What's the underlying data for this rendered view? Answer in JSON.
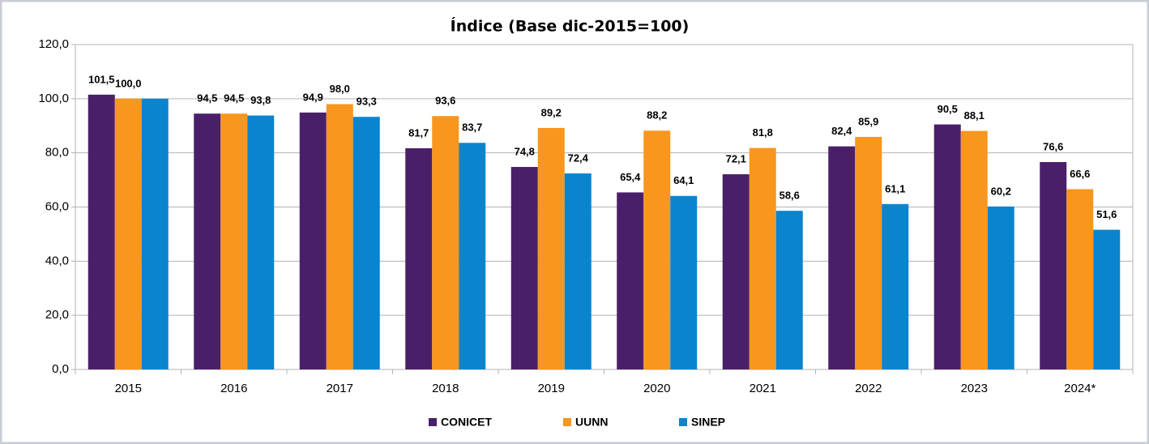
{
  "chart_data": {
    "type": "bar",
    "title": "Índice (Base dic-2015=100)",
    "categories": [
      "2015",
      "2016",
      "2017",
      "2018",
      "2019",
      "2020",
      "2021",
      "2022",
      "2023",
      "2024*"
    ],
    "series": [
      {
        "name": "CONICET",
        "color": "#4a1f6a",
        "values": [
          101.5,
          94.5,
          94.9,
          81.7,
          74.8,
          65.4,
          72.1,
          82.4,
          90.5,
          76.6
        ],
        "value_labels": [
          "101,5",
          "94,5",
          "94,9",
          "81,7",
          "74,8",
          "65,4",
          "72,1",
          "82,4",
          "90,5",
          "76,6"
        ]
      },
      {
        "name": "UUNN",
        "color": "#f8961e",
        "values": [
          100.0,
          94.5,
          98.0,
          93.6,
          89.2,
          88.2,
          81.8,
          85.9,
          88.1,
          66.6
        ],
        "value_labels": [
          "100,0",
          "94,5",
          "98,0",
          "93,6",
          "89,2",
          "88,2",
          "81,8",
          "85,9",
          "88,1",
          "66,6"
        ]
      },
      {
        "name": "SINEP",
        "color": "#0a84cf",
        "values": [
          100.0,
          93.8,
          93.3,
          83.7,
          72.4,
          64.1,
          58.6,
          61.1,
          60.2,
          51.6
        ],
        "value_labels": [
          null,
          "93,8",
          "93,3",
          "83,7",
          "72,4",
          "64,1",
          "58,6",
          "61,1",
          "60,2",
          "51,6"
        ]
      }
    ],
    "ylim": [
      0,
      120
    ],
    "yticks": [
      {
        "value": 0,
        "label": "0,0"
      },
      {
        "value": 20,
        "label": "20,0"
      },
      {
        "value": 40,
        "label": "40,0"
      },
      {
        "value": 60,
        "label": "60,0"
      },
      {
        "value": 80,
        "label": "80,0"
      },
      {
        "value": 100,
        "label": "100,0"
      },
      {
        "value": 120,
        "label": "120,0"
      }
    ],
    "grid": true,
    "legend": "bottom"
  }
}
